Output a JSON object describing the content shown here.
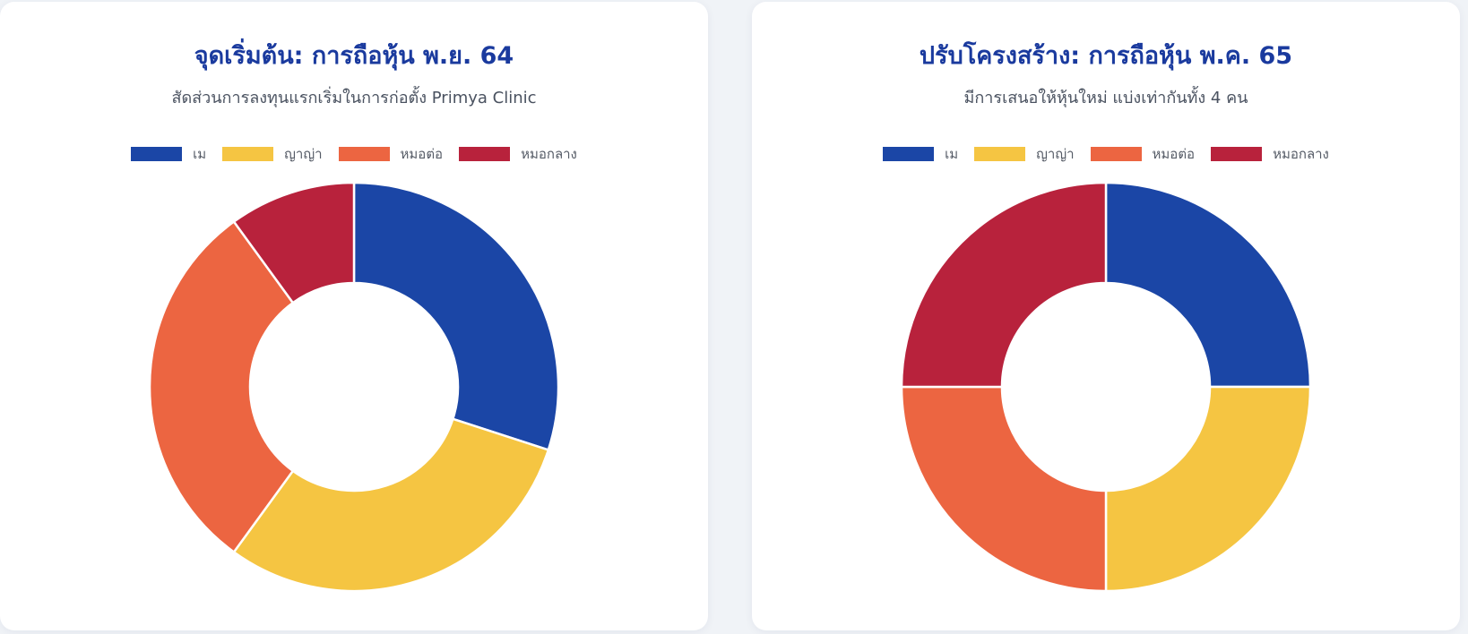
{
  "chart_data": [
    {
      "type": "pie",
      "variant": "doughnut",
      "title": "จุดเริ่มต้น: การถือหุ้น พ.ย. 64",
      "subtitle": "สัดส่วนการลงทุนแรกเริ่มในการก่อตั้ง Primya Clinic",
      "legend_position": "top",
      "categories": [
        "เม",
        "ญาญ่า",
        "หมอต่อ",
        "หมอกลาง"
      ],
      "values": [
        30,
        30,
        30,
        10
      ],
      "colors": [
        "#1b46a6",
        "#f5c542",
        "#ec6541",
        "#b8223c"
      ]
    },
    {
      "type": "pie",
      "variant": "doughnut",
      "title": "ปรับโครงสร้าง: การถือหุ้น พ.ค. 65",
      "subtitle": "มีการเสนอให้หุ้นใหม่ แบ่งเท่ากันทั้ง 4 คน",
      "legend_position": "top",
      "categories": [
        "เม",
        "ญาญ่า",
        "หมอต่อ",
        "หมอกลาง"
      ],
      "values": [
        25,
        25,
        25,
        25
      ],
      "colors": [
        "#1b46a6",
        "#f5c542",
        "#ec6541",
        "#b8223c"
      ]
    }
  ]
}
